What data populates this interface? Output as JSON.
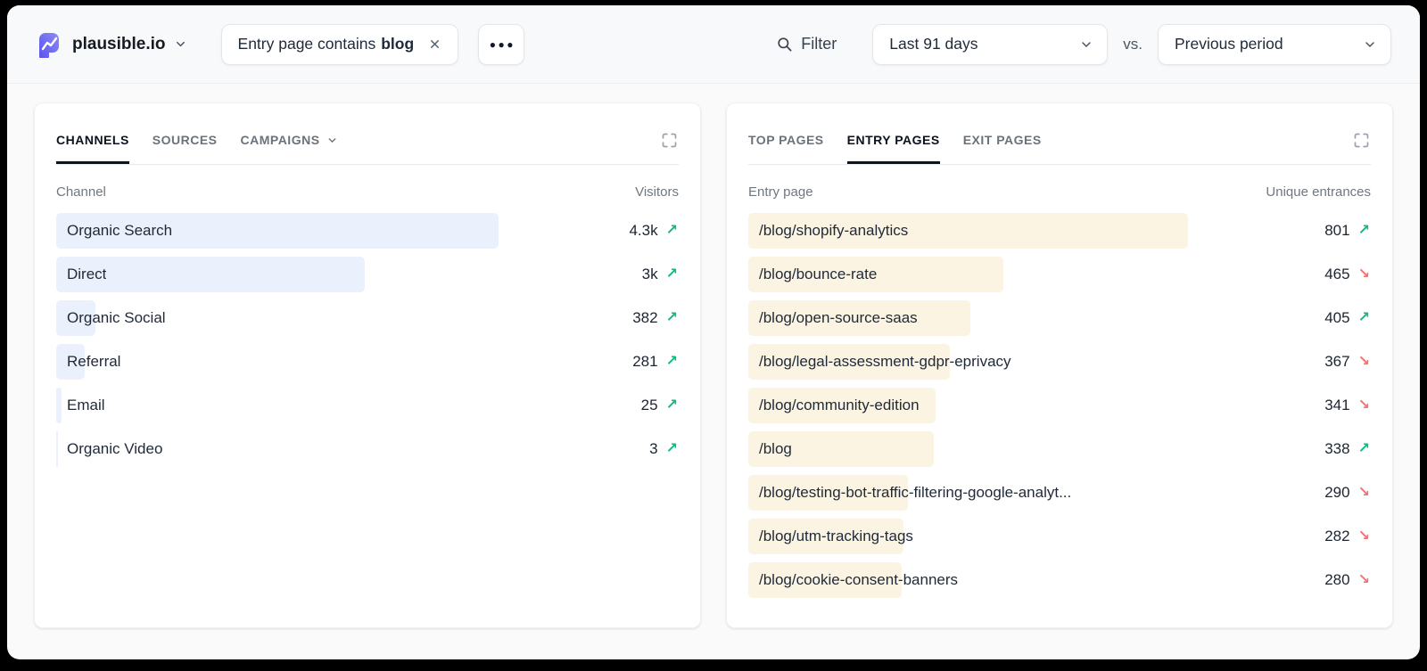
{
  "colors": {
    "brand-purple": "#5850EC",
    "brand-purple-light": "#8D8BF8",
    "trend-up": "#10B981",
    "trend-down": "#F87171",
    "channel-bar": "#EBF1FC",
    "page-bar": "#FCF4E3"
  },
  "topbar": {
    "site_name": "plausible.io",
    "filter_chip": {
      "prefix": "Entry page contains",
      "value": "blog"
    },
    "more_label": "●●●",
    "filter_label": "Filter",
    "date_range": "Last 91 days",
    "vs_label": "vs.",
    "comparison": "Previous period"
  },
  "channels_card": {
    "tabs": [
      {
        "label": "CHANNELS",
        "active": true
      },
      {
        "label": "SOURCES",
        "active": false
      },
      {
        "label": "CAMPAIGNS",
        "active": false
      }
    ],
    "columns": {
      "name": "Channel",
      "value": "Visitors"
    },
    "rows": [
      {
        "label": "Organic Search",
        "value": "4.3k",
        "trend": "up",
        "bar_pct": 71.0
      },
      {
        "label": "Direct",
        "value": "3k",
        "trend": "up",
        "bar_pct": 49.5
      },
      {
        "label": "Organic Social",
        "value": "382",
        "trend": "up",
        "bar_pct": 6.3
      },
      {
        "label": "Referral",
        "value": "281",
        "trend": "up",
        "bar_pct": 4.6
      },
      {
        "label": "Email",
        "value": "25",
        "trend": "up",
        "bar_pct": 0.9
      },
      {
        "label": "Organic Video",
        "value": "3",
        "trend": "up",
        "bar_pct": 0.35
      }
    ]
  },
  "pages_card": {
    "tabs": [
      {
        "label": "TOP PAGES",
        "active": false
      },
      {
        "label": "ENTRY PAGES",
        "active": true
      },
      {
        "label": "EXIT PAGES",
        "active": false
      }
    ],
    "columns": {
      "name": "Entry page",
      "value": "Unique entrances"
    },
    "rows": [
      {
        "label": "/blog/shopify-analytics",
        "value": "801",
        "trend": "up",
        "bar_pct": 70.7
      },
      {
        "label": "/blog/bounce-rate",
        "value": "465",
        "trend": "down",
        "bar_pct": 41.0
      },
      {
        "label": "/blog/open-source-saas",
        "value": "405",
        "trend": "up",
        "bar_pct": 35.7
      },
      {
        "label": "/blog/legal-assessment-gdpr-eprivacy",
        "value": "367",
        "trend": "down",
        "bar_pct": 32.4
      },
      {
        "label": "/blog/community-edition",
        "value": "341",
        "trend": "down",
        "bar_pct": 30.1
      },
      {
        "label": "/blog",
        "value": "338",
        "trend": "up",
        "bar_pct": 29.8
      },
      {
        "label": "/blog/testing-bot-traffic-filtering-google-analyt...",
        "value": "290",
        "trend": "down",
        "bar_pct": 25.6
      },
      {
        "label": "/blog/utm-tracking-tags",
        "value": "282",
        "trend": "down",
        "bar_pct": 24.9
      },
      {
        "label": "/blog/cookie-consent-banners",
        "value": "280",
        "trend": "down",
        "bar_pct": 24.7
      }
    ]
  }
}
